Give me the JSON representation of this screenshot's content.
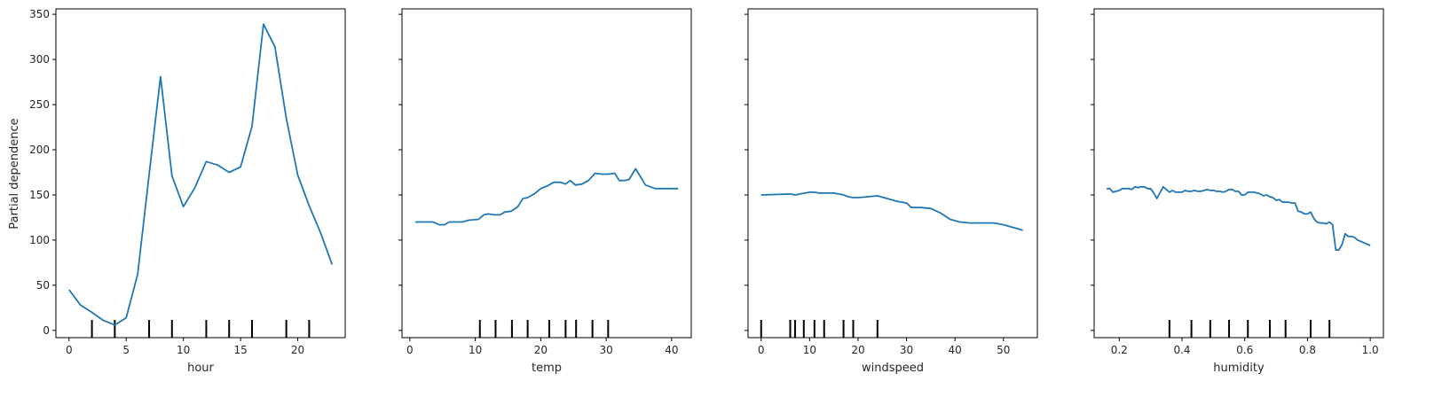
{
  "figure": {
    "ylabel": "Partial dependence"
  },
  "colors": {
    "line": "#1f77b4",
    "rug": "#000000"
  },
  "chart_data": [
    {
      "type": "line",
      "xlabel": "hour",
      "ylabel": "Partial dependence",
      "xlim": [
        -1.15,
        24.15
      ],
      "ylim": [
        -8,
        356
      ],
      "xticks": [
        0,
        5,
        10,
        15,
        20
      ],
      "yticks": [
        0,
        50,
        100,
        150,
        200,
        250,
        300,
        350
      ],
      "x": [
        0,
        1,
        2,
        3,
        4,
        5,
        6,
        7,
        8,
        9,
        10,
        11,
        12,
        13,
        14,
        15,
        16,
        17,
        18,
        19,
        20,
        21,
        22,
        23
      ],
      "y": [
        45,
        28,
        20,
        11,
        6,
        14,
        62,
        172,
        281,
        171,
        137,
        158,
        187,
        183,
        175,
        181,
        226,
        339,
        314,
        235,
        172,
        138,
        108,
        73
      ],
      "rug": [
        2,
        4,
        7,
        9,
        12,
        14,
        16,
        19,
        21
      ]
    },
    {
      "type": "line",
      "xlabel": "temp",
      "ylabel": "",
      "xlim": [
        -1.2,
        43.0
      ],
      "ylim": [
        -8,
        356
      ],
      "xticks": [
        0,
        10,
        20,
        30,
        40
      ],
      "x": [
        0.8,
        3.5,
        4.5,
        5.3,
        6.0,
        8.0,
        9.0,
        10.5,
        11.3,
        12.0,
        12.8,
        13.8,
        14.5,
        15.5,
        16.5,
        17.3,
        18.0,
        19.0,
        20.0,
        21.0,
        22.0,
        23.0,
        23.8,
        24.5,
        25.3,
        26.3,
        27.3,
        28.3,
        29.3,
        30.3,
        31.3,
        32.0,
        32.8,
        33.5,
        34.5,
        36.0,
        37.5,
        39.5,
        41.0
      ],
      "y": [
        120,
        120,
        117,
        117,
        120,
        120,
        122,
        123,
        128,
        129,
        128,
        128,
        131,
        132,
        137,
        146,
        147,
        151,
        157,
        160,
        164,
        164,
        162,
        166,
        161,
        162,
        166,
        174,
        173,
        173,
        174,
        166,
        166,
        167,
        179,
        161,
        157,
        157,
        157
      ],
      "rug": [
        10.7,
        13.1,
        15.6,
        18.0,
        21.3,
        23.8,
        25.4,
        27.9,
        30.3
      ]
    },
    {
      "type": "line",
      "xlabel": "windspeed",
      "ylabel": "",
      "xlim": [
        -2.7,
        57.0
      ],
      "ylim": [
        -8,
        356
      ],
      "xticks": [
        0,
        10,
        20,
        30,
        40,
        50
      ],
      "x": [
        0,
        6,
        7,
        8,
        9,
        10,
        11,
        12,
        13,
        15,
        16,
        17,
        18,
        19,
        20,
        22,
        24,
        26,
        28,
        30,
        31,
        33,
        35,
        37,
        39,
        41,
        43,
        45,
        48,
        50,
        52,
        54
      ],
      "y": [
        150,
        151,
        150,
        151,
        152,
        153,
        153,
        152,
        152,
        152,
        151,
        150,
        148,
        147,
        147,
        148,
        149,
        146,
        143,
        141,
        136,
        136,
        135,
        130,
        123,
        120,
        119,
        119,
        119,
        117,
        114,
        111
      ],
      "rug": [
        0,
        6.0,
        7.0,
        8.8,
        11.0,
        13.0,
        17.0,
        19.0,
        24.0
      ]
    },
    {
      "type": "line",
      "xlabel": "humidity",
      "ylabel": "",
      "xlim": [
        0.12,
        1.042
      ],
      "ylim": [
        -8,
        356
      ],
      "xticks": [
        0.2,
        0.4,
        0.6,
        0.8,
        1.0
      ],
      "xtick_labels": [
        "0.2",
        "0.4",
        "0.6",
        "0.8",
        "1.0"
      ],
      "x": [
        0.16,
        0.17,
        0.18,
        0.2,
        0.21,
        0.23,
        0.24,
        0.25,
        0.26,
        0.27,
        0.28,
        0.29,
        0.3,
        0.31,
        0.32,
        0.34,
        0.35,
        0.36,
        0.37,
        0.38,
        0.39,
        0.4,
        0.41,
        0.42,
        0.43,
        0.44,
        0.45,
        0.46,
        0.47,
        0.48,
        0.49,
        0.5,
        0.51,
        0.52,
        0.53,
        0.54,
        0.55,
        0.56,
        0.57,
        0.58,
        0.59,
        0.6,
        0.61,
        0.62,
        0.63,
        0.64,
        0.65,
        0.66,
        0.67,
        0.68,
        0.69,
        0.7,
        0.71,
        0.72,
        0.73,
        0.74,
        0.75,
        0.76,
        0.77,
        0.78,
        0.79,
        0.8,
        0.81,
        0.82,
        0.83,
        0.84,
        0.85,
        0.86,
        0.87,
        0.88,
        0.89,
        0.9,
        0.91,
        0.92,
        0.93,
        0.94,
        0.95,
        0.96,
        1.0
      ],
      "y": [
        157,
        157,
        153,
        155,
        157,
        157,
        156,
        159,
        158,
        159,
        159,
        157,
        157,
        152,
        146,
        159,
        156,
        153,
        155,
        153,
        153,
        153,
        155,
        154,
        154,
        155,
        154,
        154,
        155,
        156,
        155,
        155,
        154,
        154,
        153,
        154,
        156,
        156,
        154,
        154,
        150,
        150,
        153,
        153,
        153,
        152,
        151,
        149,
        150,
        148,
        147,
        144,
        145,
        142,
        142,
        142,
        141,
        141,
        132,
        131,
        129,
        129,
        131,
        124,
        120,
        119,
        119,
        118,
        120,
        117,
        89,
        89,
        95,
        107,
        104,
        104,
        103,
        100,
        94
      ],
      "rug": [
        0.36,
        0.43,
        0.49,
        0.55,
        0.61,
        0.68,
        0.73,
        0.81,
        0.87
      ]
    }
  ]
}
